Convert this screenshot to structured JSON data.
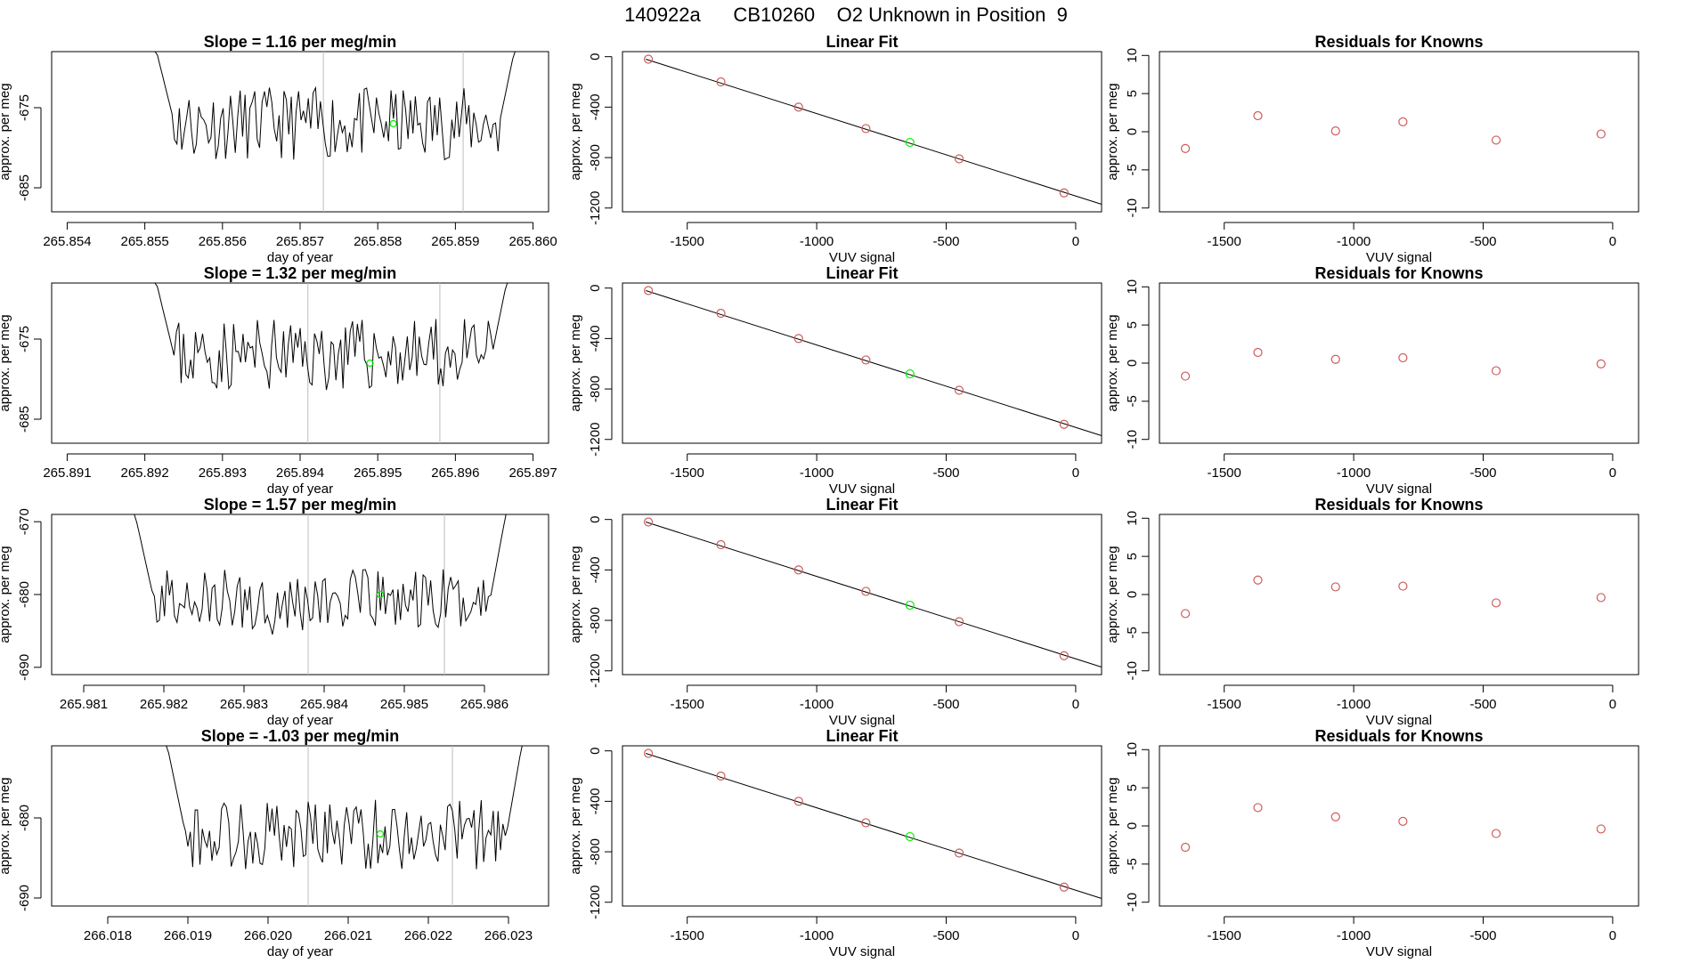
{
  "header": {
    "title": "140922a      CB10260    O2 Unknown in Position  9"
  },
  "colors": {
    "line": "#000000",
    "knowns": "#cd5c5c",
    "unknown": "#00ee00",
    "vline": "#bebebe",
    "box": "#000000"
  },
  "chart_data": [
    {
      "type": "line",
      "panel": "timeseries",
      "title": "Slope =  1.16  per meg/min",
      "xlabel": "day of year",
      "ylabel": "approx. per meg",
      "xlim": [
        265.8538,
        265.8602
      ],
      "ylim": [
        -688,
        -668
      ],
      "xticks": [
        "265.854",
        "265.855",
        "265.856",
        "265.857",
        "265.858",
        "265.859",
        "265.860"
      ],
      "yticks": [
        "-675",
        "-685"
      ],
      "vlines": [
        265.8573,
        265.8591
      ],
      "unknown_point": {
        "x": 265.8582,
        "y": -677
      },
      "series_range": [
        265.8551,
        265.8598
      ],
      "baseline": -677,
      "seed": 11
    },
    {
      "type": "scatter",
      "panel": "linear_fit",
      "title": "Linear Fit",
      "xlabel": "VUV signal",
      "ylabel": "approx. per meg",
      "xlim": [
        -1750,
        100
      ],
      "ylim": [
        -1230,
        40
      ],
      "xticks": [
        "-1500",
        "-1000",
        "-500",
        "0"
      ],
      "yticks": [
        "0",
        "-400",
        "-800",
        "-1200"
      ],
      "fit_line": {
        "x": [
          -1660,
          100
        ],
        "y": [
          -20,
          -1170
        ]
      },
      "knowns": {
        "x": [
          -1650,
          -1370,
          -1070,
          -810,
          -450,
          -45
        ],
        "y": [
          -20,
          -200,
          -400,
          -570,
          -810,
          -1080
        ]
      },
      "unknown": {
        "x": -640,
        "y": -680
      }
    },
    {
      "type": "scatter",
      "panel": "residuals",
      "title": "Residuals for Knowns",
      "xlabel": "VUV signal",
      "ylabel": "approx. per meg",
      "xlim": [
        -1750,
        100
      ],
      "ylim": [
        -10.5,
        10.5
      ],
      "xticks": [
        "-1500",
        "-1000",
        "-500",
        "0"
      ],
      "yticks": [
        "10",
        "5",
        "0",
        "-5",
        "-10"
      ],
      "points": {
        "x": [
          -1650,
          -1370,
          -1070,
          -810,
          -450,
          -45
        ],
        "y": [
          -2.2,
          2.1,
          0.1,
          1.3,
          -1.1,
          -0.3
        ]
      }
    },
    {
      "type": "line",
      "panel": "timeseries",
      "title": "Slope =  1.32  per meg/min",
      "xlabel": "day of year",
      "ylabel": "approx. per meg",
      "xlim": [
        265.8908,
        265.8972
      ],
      "ylim": [
        -688,
        -668
      ],
      "xticks": [
        "265.891",
        "265.892",
        "265.893",
        "265.894",
        "265.895",
        "265.896",
        "265.897"
      ],
      "yticks": [
        "-675",
        "-685"
      ],
      "vlines": [
        265.8941,
        265.8958
      ],
      "unknown_point": {
        "x": 265.8949,
        "y": -678
      },
      "series_range": [
        265.8921,
        265.8967
      ],
      "baseline": -677,
      "seed": 23
    },
    {
      "type": "scatter",
      "panel": "linear_fit",
      "title": "Linear Fit",
      "xlabel": "VUV signal",
      "ylabel": "approx. per meg",
      "xlim": [
        -1750,
        100
      ],
      "ylim": [
        -1230,
        40
      ],
      "xticks": [
        "-1500",
        "-1000",
        "-500",
        "0"
      ],
      "yticks": [
        "0",
        "-400",
        "-800",
        "-1200"
      ],
      "fit_line": {
        "x": [
          -1660,
          100
        ],
        "y": [
          -20,
          -1170
        ]
      },
      "knowns": {
        "x": [
          -1650,
          -1370,
          -1070,
          -810,
          -450,
          -45
        ],
        "y": [
          -20,
          -200,
          -400,
          -570,
          -810,
          -1080
        ]
      },
      "unknown": {
        "x": -640,
        "y": -680
      }
    },
    {
      "type": "scatter",
      "panel": "residuals",
      "title": "Residuals for Knowns",
      "xlabel": "VUV signal",
      "ylabel": "approx. per meg",
      "xlim": [
        -1750,
        100
      ],
      "ylim": [
        -10.5,
        10.5
      ],
      "xticks": [
        "-1500",
        "-1000",
        "-500",
        "0"
      ],
      "yticks": [
        "10",
        "5",
        "0",
        "-5",
        "-10"
      ],
      "points": {
        "x": [
          -1650,
          -1370,
          -1070,
          -810,
          -450,
          -45
        ],
        "y": [
          -1.7,
          1.4,
          0.5,
          0.7,
          -1.0,
          -0.1
        ]
      }
    },
    {
      "type": "line",
      "panel": "timeseries",
      "title": "Slope =  1.57  per meg/min",
      "xlabel": "day of year",
      "ylabel": "approx. per meg",
      "xlim": [
        265.9806,
        265.9868
      ],
      "ylim": [
        -691,
        -669
      ],
      "xticks": [
        "265.981",
        "265.982",
        "265.983",
        "265.984",
        "265.985",
        "265.986"
      ],
      "yticks": [
        "-670",
        "-680",
        "-690"
      ],
      "vlines": [
        265.9838,
        265.9855
      ],
      "unknown_point": {
        "x": 265.9847,
        "y": -680
      },
      "series_range": [
        265.9816,
        265.9863
      ],
      "baseline": -681,
      "seed": 37
    },
    {
      "type": "scatter",
      "panel": "linear_fit",
      "title": "Linear Fit",
      "xlabel": "VUV signal",
      "ylabel": "approx. per meg",
      "xlim": [
        -1750,
        100
      ],
      "ylim": [
        -1230,
        40
      ],
      "xticks": [
        "-1500",
        "-1000",
        "-500",
        "0"
      ],
      "yticks": [
        "0",
        "-400",
        "-800",
        "-1200"
      ],
      "fit_line": {
        "x": [
          -1660,
          100
        ],
        "y": [
          -20,
          -1170
        ]
      },
      "knowns": {
        "x": [
          -1650,
          -1370,
          -1070,
          -810,
          -450,
          -45
        ],
        "y": [
          -20,
          -200,
          -400,
          -570,
          -810,
          -1080
        ]
      },
      "unknown": {
        "x": -640,
        "y": -680
      }
    },
    {
      "type": "scatter",
      "panel": "residuals",
      "title": "Residuals for Knowns",
      "xlabel": "VUV signal",
      "ylabel": "approx. per meg",
      "xlim": [
        -1750,
        100
      ],
      "ylim": [
        -10.5,
        10.5
      ],
      "xticks": [
        "-1500",
        "-1000",
        "-500",
        "0"
      ],
      "yticks": [
        "10",
        "5",
        "0",
        "-5",
        "-10"
      ],
      "points": {
        "x": [
          -1650,
          -1370,
          -1070,
          -810,
          -450,
          -45
        ],
        "y": [
          -2.5,
          1.9,
          1.0,
          1.1,
          -1.1,
          -0.4
        ]
      }
    },
    {
      "type": "line",
      "panel": "timeseries",
      "title": "Slope =  -1.03  per meg/min",
      "xlabel": "day of year",
      "ylabel": "approx. per meg",
      "xlim": [
        266.0173,
        266.0235
      ],
      "ylim": [
        -691,
        -671
      ],
      "xticks": [
        "266.018",
        "266.019",
        "266.020",
        "266.021",
        "266.022",
        "266.023"
      ],
      "yticks": [
        "-680",
        "-690"
      ],
      "vlines": [
        266.0205,
        266.0223
      ],
      "unknown_point": {
        "x": 266.0214,
        "y": -682
      },
      "series_range": [
        266.0187,
        266.0232
      ],
      "baseline": -682,
      "seed": 53
    },
    {
      "type": "scatter",
      "panel": "linear_fit",
      "title": "Linear Fit",
      "xlabel": "VUV signal",
      "ylabel": "approx. per meg",
      "xlim": [
        -1750,
        100
      ],
      "ylim": [
        -1230,
        40
      ],
      "xticks": [
        "-1500",
        "-1000",
        "-500",
        "0"
      ],
      "yticks": [
        "0",
        "-400",
        "-800",
        "-1200"
      ],
      "fit_line": {
        "x": [
          -1660,
          100
        ],
        "y": [
          -20,
          -1170
        ]
      },
      "knowns": {
        "x": [
          -1650,
          -1370,
          -1070,
          -810,
          -450,
          -45
        ],
        "y": [
          -20,
          -200,
          -400,
          -570,
          -810,
          -1080
        ]
      },
      "unknown": {
        "x": -640,
        "y": -680
      }
    },
    {
      "type": "scatter",
      "panel": "residuals",
      "title": "Residuals for Knowns",
      "xlabel": "VUV signal",
      "ylabel": "approx. per meg",
      "xlim": [
        -1750,
        100
      ],
      "ylim": [
        -10.5,
        10.5
      ],
      "xticks": [
        "-1500",
        "-1000",
        "-500",
        "0"
      ],
      "yticks": [
        "10",
        "5",
        "0",
        "-5",
        "-10"
      ],
      "points": {
        "x": [
          -1650,
          -1370,
          -1070,
          -810,
          -450,
          -45
        ],
        "y": [
          -2.8,
          2.4,
          1.2,
          0.6,
          -1.0,
          -0.4
        ]
      }
    }
  ]
}
